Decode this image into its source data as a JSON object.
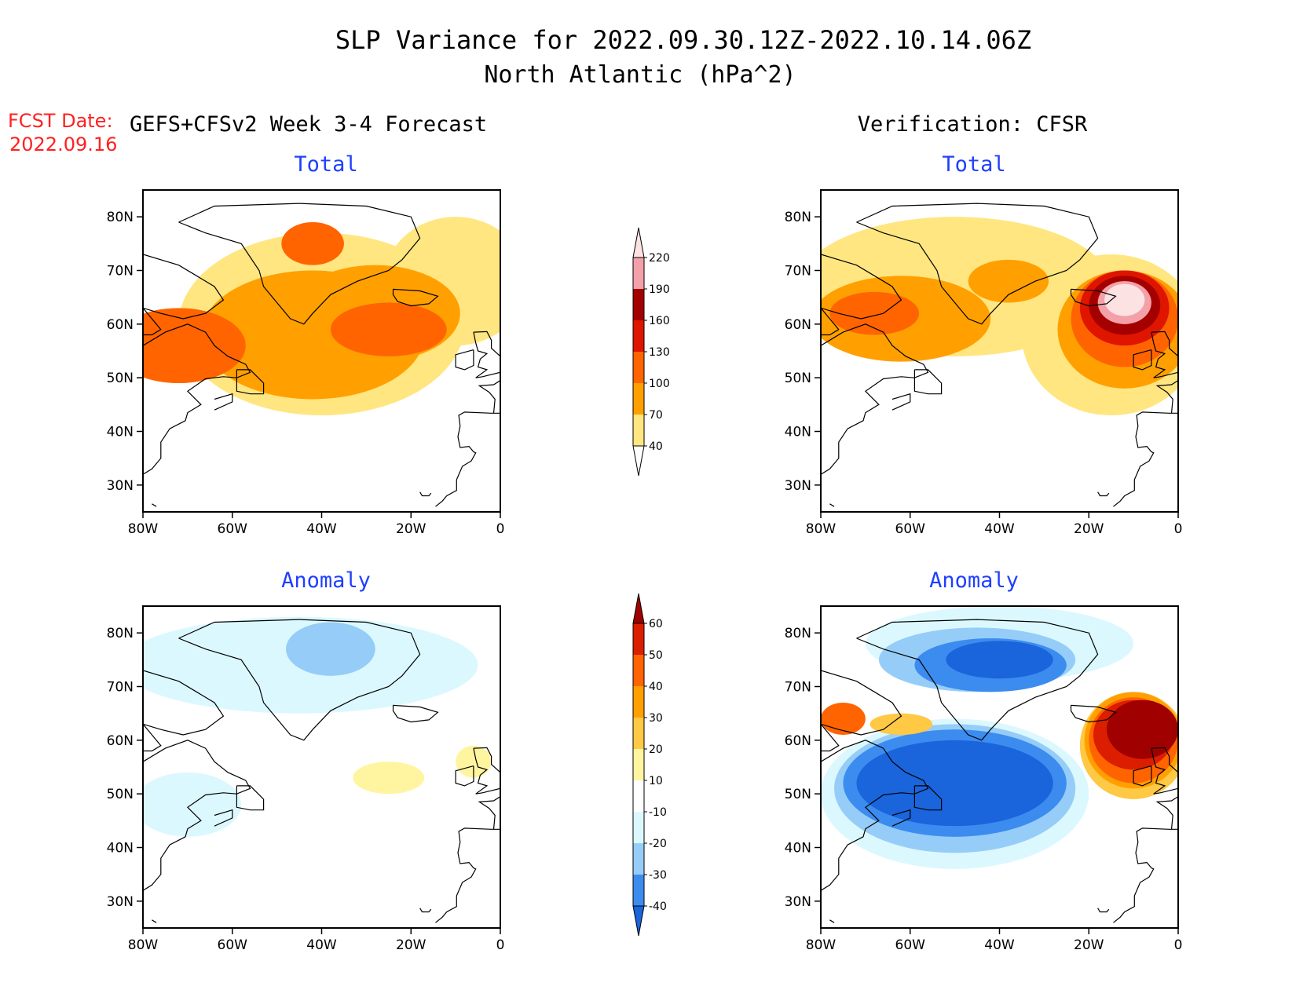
{
  "title": {
    "line1": "SLP Variance for 2022.09.30.12Z-2022.10.14.06Z",
    "line2": "North Atlantic (hPa^2)"
  },
  "fcst": {
    "label": "FCST Date:",
    "date": "2022.09.16"
  },
  "columns": {
    "left": "GEFS+CFSv2 Week 3-4 Forecast",
    "right": "Verification: CFSR"
  },
  "panel_titles": {
    "total": "Total",
    "anomaly": "Anomaly"
  },
  "axes": {
    "lat_ticks": [
      "80N",
      "70N",
      "60N",
      "50N",
      "40N",
      "30N"
    ],
    "lon_ticks": [
      "80W",
      "60W",
      "40W",
      "20W",
      "0"
    ]
  },
  "colors": {
    "title_blue": "#1f3fff",
    "fcst_red": "#ff2020"
  },
  "colorbars": {
    "total": {
      "labels": [
        "40",
        "70",
        "100",
        "130",
        "160",
        "190",
        "220"
      ],
      "colors": [
        "#ffe680",
        "#ffa000",
        "#ff6400",
        "#e01500",
        "#a50000",
        "#f4a0a8",
        "#fde2e4"
      ]
    },
    "anomaly": {
      "labels": [
        "-40",
        "-30",
        "-20",
        "-10",
        "10",
        "20",
        "30",
        "40",
        "50",
        "60"
      ],
      "colors": [
        "#1a64dc",
        "#3c8cf0",
        "#96cdf8",
        "#dcf8ff",
        "#ffffff",
        "#fff5a0",
        "#ffc845",
        "#ffa000",
        "#ff6400",
        "#dc1e00",
        "#a00000"
      ]
    }
  },
  "map_data": {
    "extent": {
      "lon": [
        -80,
        0
      ],
      "lat": [
        25,
        85
      ]
    },
    "panels": [
      {
        "id": "forecast-total",
        "kind": "total",
        "blobs": [
          {
            "lon": -40,
            "lat": 60,
            "rl": 32,
            "rt": 17,
            "c": 0
          },
          {
            "lon": -10,
            "lat": 68,
            "rl": 16,
            "rt": 12,
            "c": 0
          },
          {
            "lon": -42,
            "lat": 58,
            "rl": 25,
            "rt": 12,
            "c": 1
          },
          {
            "lon": -28,
            "lat": 62,
            "rl": 19,
            "rt": 9,
            "c": 1
          },
          {
            "lon": -72,
            "lat": 56,
            "rl": 15,
            "rt": 7,
            "c": 2
          },
          {
            "lon": -25,
            "lat": 59,
            "rl": 13,
            "rt": 5,
            "c": 2
          },
          {
            "lon": -42,
            "lat": 75,
            "rl": 7,
            "rt": 4,
            "c": 2
          }
        ]
      },
      {
        "id": "verification-total",
        "kind": "total",
        "blobs": [
          {
            "lon": -50,
            "lat": 67,
            "rl": 35,
            "rt": 13,
            "c": 0
          },
          {
            "lon": -15,
            "lat": 58,
            "rl": 20,
            "rt": 15,
            "c": 0
          },
          {
            "lon": -62,
            "lat": 61,
            "rl": 20,
            "rt": 8,
            "c": 1
          },
          {
            "lon": -38,
            "lat": 68,
            "rl": 9,
            "rt": 4,
            "c": 1
          },
          {
            "lon": -12,
            "lat": 59,
            "rl": 15,
            "rt": 11,
            "c": 1
          },
          {
            "lon": -12,
            "lat": 61,
            "rl": 12,
            "rt": 9,
            "c": 2
          },
          {
            "lon": -68,
            "lat": 62,
            "rl": 10,
            "rt": 4,
            "c": 2
          },
          {
            "lon": -12,
            "lat": 63,
            "rl": 10,
            "rt": 7,
            "c": 3
          },
          {
            "lon": -12,
            "lat": 63.5,
            "rl": 8,
            "rt": 5.5,
            "c": 4
          },
          {
            "lon": -12,
            "lat": 64,
            "rl": 6,
            "rt": 4,
            "c": 5
          },
          {
            "lon": -12,
            "lat": 64.5,
            "rl": 4.5,
            "rt": 3,
            "c": 6
          }
        ]
      },
      {
        "id": "forecast-anomaly",
        "kind": "anomaly",
        "blobs": [
          {
            "lon": -45,
            "lat": 74,
            "rl": 40,
            "rt": 9,
            "c": 3
          },
          {
            "lon": -70,
            "lat": 48,
            "rl": 12,
            "rt": 6,
            "c": 3
          },
          {
            "lon": -38,
            "lat": 77,
            "rl": 10,
            "rt": 5,
            "c": 2
          },
          {
            "lon": -25,
            "lat": 53,
            "rl": 8,
            "rt": 3,
            "c": 5
          },
          {
            "lon": -6,
            "lat": 56,
            "rl": 4,
            "rt": 3,
            "c": 5
          }
        ]
      },
      {
        "id": "verification-anomaly",
        "kind": "anomaly",
        "blobs": [
          {
            "lon": -50,
            "lat": 50,
            "rl": 30,
            "rt": 14,
            "c": 3
          },
          {
            "lon": -40,
            "lat": 78,
            "rl": 30,
            "rt": 7,
            "c": 3
          },
          {
            "lon": -50,
            "lat": 51,
            "rl": 27,
            "rt": 12,
            "c": 2
          },
          {
            "lon": -45,
            "lat": 75,
            "rl": 22,
            "rt": 6,
            "c": 2
          },
          {
            "lon": -50,
            "lat": 52,
            "rl": 25,
            "rt": 10,
            "c": 1
          },
          {
            "lon": -42,
            "lat": 74,
            "rl": 17,
            "rt": 5,
            "c": 1
          },
          {
            "lon": -50,
            "lat": 52,
            "rl": 22,
            "rt": 8,
            "c": 0
          },
          {
            "lon": -40,
            "lat": 75,
            "rl": 12,
            "rt": 3.5,
            "c": 0
          },
          {
            "lon": -10,
            "lat": 59,
            "rl": 12,
            "rt": 10,
            "c": 6
          },
          {
            "lon": -10,
            "lat": 60,
            "rl": 11,
            "rt": 9,
            "c": 7
          },
          {
            "lon": -10,
            "lat": 60,
            "rl": 10,
            "rt": 8,
            "c": 8
          },
          {
            "lon": -10,
            "lat": 61,
            "rl": 9,
            "rt": 6.5,
            "c": 9
          },
          {
            "lon": -8,
            "lat": 62,
            "rl": 8,
            "rt": 5.5,
            "c": 10
          },
          {
            "lon": -75,
            "lat": 64,
            "rl": 5,
            "rt": 3,
            "c": 8
          },
          {
            "lon": -62,
            "lat": 63,
            "rl": 7,
            "rt": 2,
            "c": 6
          }
        ]
      }
    ]
  }
}
